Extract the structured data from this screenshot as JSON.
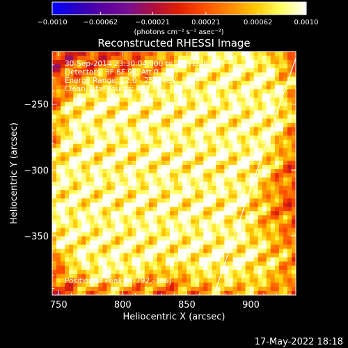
{
  "chart_data": {
    "type": "heatmap",
    "title": "Reconstructed RHESSI Image",
    "xlabel": "Heliocentric X (arcsec)",
    "ylabel": "Heliocentric Y (arcsec)",
    "xlim": [
      745,
      935
    ],
    "ylim": [
      -395,
      -210
    ],
    "x_ticks": [
      750,
      800,
      850,
      900
    ],
    "x_tick_labels": [
      "750",
      "800",
      "850",
      "900"
    ],
    "y_ticks": [
      -250,
      -300,
      -350
    ],
    "y_tick_labels": [
      "−250",
      "−300",
      "−350"
    ],
    "colorbar": {
      "min": -0.001,
      "max": 0.001,
      "ticks": [
        -0.001,
        -0.00062,
        -0.00021,
        0.00021,
        0.00062,
        0.001
      ],
      "tick_labels": [
        "−0.0010",
        "−0.00062",
        "−0.00021",
        "0.00021",
        "0.00062",
        "0.0010"
      ],
      "label": "(photons cm⁻² s⁻¹ asec⁻²)",
      "colormap": [
        "#0000ff",
        "#2b00c0",
        "#5a00a0",
        "#7a1090",
        "#b01040",
        "#e02000",
        "#ff5000",
        "#ff8a00",
        "#ffc800",
        "#ffff60",
        "#ffffff"
      ]
    },
    "annotations": [
      "30-Sep-2014 23:30:04.000 to 23:31:28.000",
      "Detectors: 3F 6F 9F, Att 0",
      "Energy Range: 12.0 - 25.0 keV",
      "Clean     Total counts: 487"
    ],
    "peak_label": "Position of Peak = [792,-366]",
    "peak": [
      792,
      -366
    ],
    "limb_line": [
      [
        871,
        -395
      ],
      [
        935,
        -215
      ]
    ],
    "colors": {
      "background": "#000000",
      "foreground": "#ffffff"
    }
  },
  "footer": {
    "timestamp": "17-May-2022 18:18"
  }
}
